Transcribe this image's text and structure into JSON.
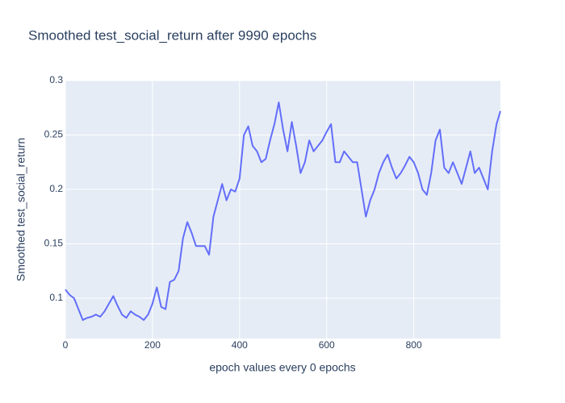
{
  "chart_data": {
    "type": "line",
    "title": "Smoothed test_social_return after 9990 epochs",
    "x_label": "epoch values every 0 epochs",
    "y_label": "Smoothed test_social_return",
    "x": [
      0,
      10,
      20,
      30,
      40,
      50,
      60,
      70,
      80,
      90,
      100,
      110,
      120,
      130,
      140,
      150,
      160,
      170,
      180,
      190,
      200,
      210,
      220,
      230,
      240,
      250,
      260,
      270,
      280,
      290,
      300,
      310,
      320,
      330,
      340,
      350,
      360,
      370,
      380,
      390,
      400,
      410,
      420,
      430,
      440,
      450,
      460,
      470,
      480,
      490,
      500,
      510,
      520,
      530,
      540,
      550,
      560,
      570,
      580,
      590,
      600,
      610,
      620,
      630,
      640,
      650,
      660,
      670,
      680,
      690,
      700,
      710,
      720,
      730,
      740,
      750,
      760,
      770,
      780,
      790,
      800,
      810,
      820,
      830,
      840,
      850,
      860,
      870,
      880,
      890,
      900,
      910,
      920,
      930,
      940,
      950,
      960,
      970,
      980,
      990,
      999
    ],
    "values": [
      0.108,
      0.103,
      0.1,
      0.09,
      0.08,
      0.082,
      0.083,
      0.085,
      0.083,
      0.088,
      0.095,
      0.102,
      0.093,
      0.085,
      0.082,
      0.088,
      0.085,
      0.083,
      0.08,
      0.085,
      0.095,
      0.11,
      0.092,
      0.09,
      0.115,
      0.117,
      0.125,
      0.155,
      0.17,
      0.16,
      0.148,
      0.148,
      0.148,
      0.14,
      0.175,
      0.19,
      0.205,
      0.19,
      0.2,
      0.198,
      0.21,
      0.25,
      0.258,
      0.24,
      0.235,
      0.225,
      0.228,
      0.245,
      0.26,
      0.28,
      0.255,
      0.235,
      0.262,
      0.24,
      0.215,
      0.225,
      0.245,
      0.235,
      0.24,
      0.245,
      0.253,
      0.26,
      0.225,
      0.225,
      0.235,
      0.23,
      0.225,
      0.225,
      0.2,
      0.175,
      0.19,
      0.2,
      0.215,
      0.225,
      0.232,
      0.22,
      0.21,
      0.215,
      0.222,
      0.23,
      0.225,
      0.215,
      0.2,
      0.195,
      0.215,
      0.245,
      0.255,
      0.22,
      0.215,
      0.225,
      0.215,
      0.205,
      0.22,
      0.235,
      0.215,
      0.22,
      0.21,
      0.2,
      0.235,
      0.26,
      0.272
    ],
    "color": "#636efa",
    "xlim": [
      0,
      999
    ],
    "xticks": [
      0,
      200,
      400,
      600,
      800
    ],
    "ylim": [
      0.063,
      0.3
    ],
    "yticks": [
      0.1,
      0.15,
      0.2,
      0.25,
      0.3
    ],
    "grid": true
  }
}
